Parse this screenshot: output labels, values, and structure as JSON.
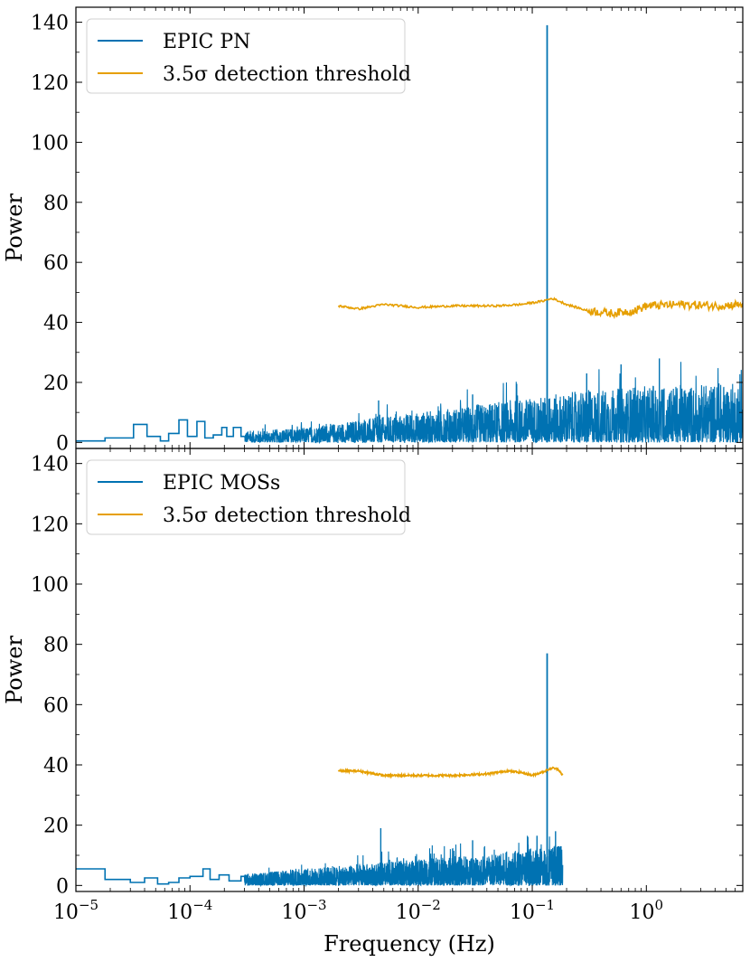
{
  "chart_data": [
    {
      "type": "line",
      "panel": "top",
      "xscale": "log",
      "xlim": [
        1e-05,
        7.0
      ],
      "ylim": [
        -2,
        145
      ],
      "ylabel": "Power",
      "xlabel": "",
      "yticks": [
        0,
        20,
        40,
        60,
        80,
        100,
        120,
        140
      ],
      "ytick_labels": [
        "0",
        "20",
        "40",
        "60",
        "80",
        "100",
        "120",
        "140"
      ],
      "legend_position": "top-left",
      "series": [
        {
          "name": "EPIC PN",
          "color": "#0072b2",
          "style": "steps-noise",
          "noise_range_hz": [
            1e-05,
            7.0
          ],
          "steps": [
            [
              1e-05,
              0.5
            ],
            [
              1.8e-05,
              1.5
            ],
            [
              3.2e-05,
              6
            ],
            [
              4.2e-05,
              2
            ],
            [
              5.5e-05,
              0.5
            ],
            [
              6.5e-05,
              3
            ],
            [
              8e-05,
              7.5
            ],
            [
              9.5e-05,
              2
            ],
            [
              0.000115,
              7
            ],
            [
              0.000135,
              1.5
            ],
            [
              0.00016,
              2.5
            ],
            [
              0.00019,
              5
            ],
            [
              0.00021,
              2
            ],
            [
              0.00024,
              5
            ],
            [
              0.00028,
              2
            ]
          ],
          "envelope": [
            [
              0.0003,
              3
            ],
            [
              0.001,
              4
            ],
            [
              0.003,
              6
            ],
            [
              0.01,
              8
            ],
            [
              0.03,
              10
            ],
            [
              0.1,
              12
            ],
            [
              0.3,
              14
            ],
            [
              1.0,
              15
            ],
            [
              7.0,
              16
            ]
          ],
          "spikes": [
            [
              0.0045,
              14
            ],
            [
              0.03,
              16
            ],
            [
              0.6,
              26
            ],
            [
              1.3,
              28
            ],
            [
              0.3,
              23
            ]
          ],
          "peak": {
            "x": 0.135,
            "y": 139
          }
        },
        {
          "name": "3.5σ detection threshold",
          "color": "#e69f00",
          "x": [
            0.002,
            0.003,
            0.005,
            0.01,
            0.02,
            0.05,
            0.08,
            0.12,
            0.15,
            0.2,
            0.3,
            0.5,
            0.8,
            1.0,
            2.0,
            4.0,
            7.0
          ],
          "y": [
            45.5,
            44.5,
            46,
            45,
            45.5,
            45.5,
            46,
            47,
            48,
            46,
            44,
            43,
            44,
            45.5,
            46,
            45.5,
            46
          ]
        }
      ]
    },
    {
      "type": "line",
      "panel": "bottom",
      "xscale": "log",
      "xlim": [
        1e-05,
        7.0
      ],
      "ylim": [
        -2,
        145
      ],
      "ylabel": "Power",
      "xlabel": "Frequency (Hz)",
      "yticks": [
        0,
        20,
        40,
        60,
        80,
        100,
        120,
        140
      ],
      "ytick_labels": [
        "0",
        "20",
        "40",
        "60",
        "80",
        "100",
        "120",
        "140"
      ],
      "xticks": [
        1e-05,
        0.0001,
        0.001,
        0.01,
        0.1,
        1.0
      ],
      "xtick_labels": [
        {
          "base": "10",
          "exp": "−5"
        },
        {
          "base": "10",
          "exp": "−4"
        },
        {
          "base": "10",
          "exp": "−3"
        },
        {
          "base": "10",
          "exp": "−2"
        },
        {
          "base": "10",
          "exp": "−1"
        },
        {
          "base": "10",
          "exp": "0"
        }
      ],
      "legend_position": "top-left",
      "series": [
        {
          "name": "EPIC MOSs",
          "color": "#0072b2",
          "style": "steps-noise",
          "noise_range_hz": [
            1e-05,
            0.185
          ],
          "steps": [
            [
              1e-05,
              5.5
            ],
            [
              1.8e-05,
              2
            ],
            [
              3e-05,
              1
            ],
            [
              4e-05,
              2.5
            ],
            [
              5.2e-05,
              0.5
            ],
            [
              6.5e-05,
              1
            ],
            [
              8e-05,
              2.5
            ],
            [
              0.0001,
              3
            ],
            [
              0.00013,
              5.5
            ],
            [
              0.00015,
              2
            ],
            [
              0.00018,
              3.5
            ],
            [
              0.00022,
              1.5
            ],
            [
              0.00028,
              3
            ]
          ],
          "envelope": [
            [
              0.0003,
              3
            ],
            [
              0.001,
              4.5
            ],
            [
              0.003,
              5.5
            ],
            [
              0.01,
              7
            ],
            [
              0.05,
              8.5
            ],
            [
              0.1,
              10
            ],
            [
              0.185,
              11
            ]
          ],
          "spikes": [
            [
              0.0047,
              19
            ],
            [
              0.03,
              15
            ],
            [
              0.11,
              16.5
            ],
            [
              0.16,
              18
            ]
          ],
          "peak": {
            "x": 0.135,
            "y": 77
          }
        },
        {
          "name": "3.5σ detection threshold",
          "color": "#e69f00",
          "x": [
            0.002,
            0.003,
            0.005,
            0.01,
            0.02,
            0.04,
            0.06,
            0.08,
            0.1,
            0.13,
            0.15,
            0.17,
            0.185
          ],
          "y": [
            38,
            38,
            36.5,
            36.5,
            36.5,
            37,
            38,
            37.5,
            36.5,
            38,
            39,
            38.5,
            36.5
          ]
        }
      ]
    }
  ]
}
